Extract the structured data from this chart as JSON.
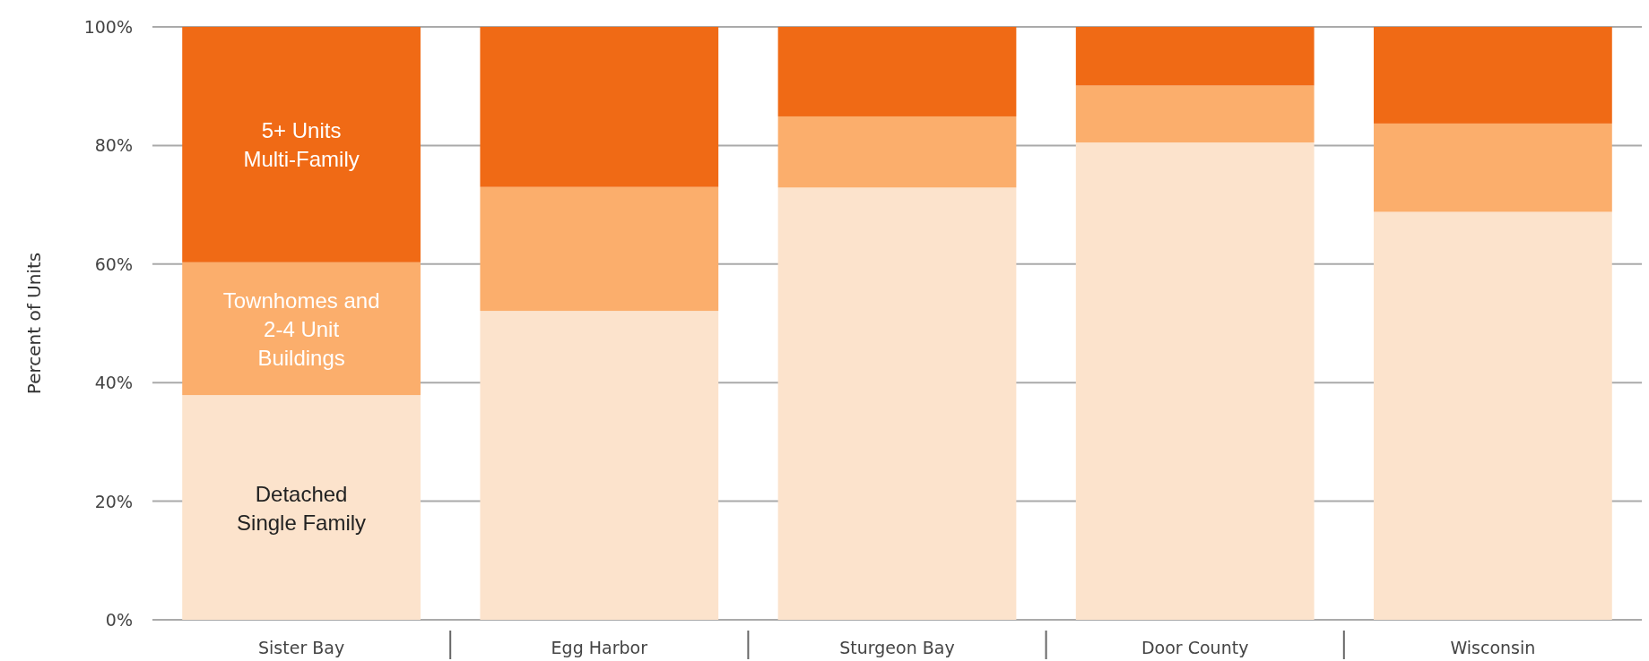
{
  "chart_data": {
    "type": "bar",
    "stacked": true,
    "ylabel": "Percent of Units",
    "categories": [
      "Sister Bay",
      "Egg Harbor",
      "Sturgeon Bay",
      "Door County",
      "Wisconsin"
    ],
    "series": [
      {
        "name": "Detached Single Family",
        "color": "#fce3cc",
        "values": [
          37.9,
          52.1,
          72.9,
          80.5,
          68.8
        ]
      },
      {
        "name": "Townhomes and 2-4 Unit Buildings",
        "color": "#fbae6c",
        "values": [
          22.4,
          20.9,
          12.0,
          9.6,
          14.9
        ]
      },
      {
        "name": "5+ Units Multi-Family",
        "color": "#f06a15",
        "values": [
          39.7,
          27.0,
          15.1,
          9.9,
          16.3
        ]
      }
    ],
    "ylim": [
      0,
      100
    ],
    "yticks": [
      {
        "value": 0,
        "label": "0%"
      },
      {
        "value": 20,
        "label": "20%"
      },
      {
        "value": 40,
        "label": "40%"
      },
      {
        "value": 60,
        "label": "60%"
      },
      {
        "value": 80,
        "label": "80%"
      },
      {
        "value": 100,
        "label": "100%"
      }
    ],
    "grid": "y"
  }
}
